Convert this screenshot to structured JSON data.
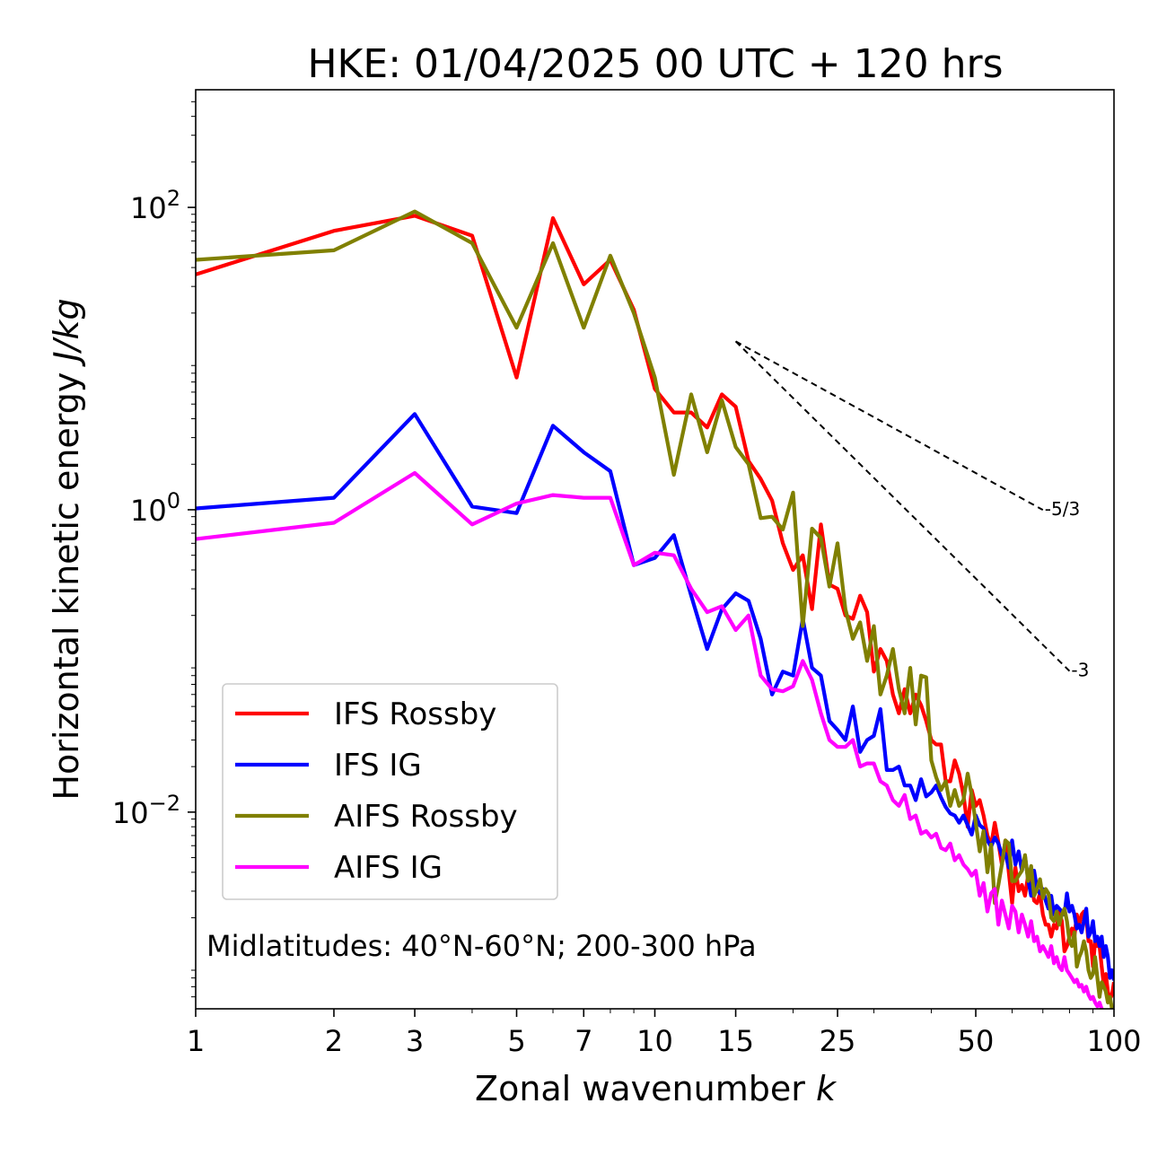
{
  "chart_data": {
    "type": "line",
    "title": "HKE: 01/04/2025 00 UTC + 120 hrs",
    "xlabel_text": "Zonal wavenumber",
    "xlabel_var": "k",
    "ylabel_text": "Horizontal kinetic energy",
    "ylabel_unit": "J/kg",
    "x_scale": "log",
    "y_scale": "log",
    "xlim": [
      1,
      100
    ],
    "ylim": [
      0.0005,
      600
    ],
    "x_ticks": [
      1,
      2,
      3,
      5,
      7,
      10,
      15,
      25,
      50,
      100
    ],
    "x_tick_labels": [
      "1",
      "2",
      "3",
      "5",
      "7",
      "10",
      "15",
      "25",
      "50",
      "100"
    ],
    "y_ticks": [
      {
        "value": 100,
        "base": "10",
        "exp": "2"
      },
      {
        "value": 1,
        "base": "10",
        "exp": "0"
      },
      {
        "value": 0.01,
        "base": "10",
        "exp": "−2"
      }
    ],
    "grid": false,
    "legend_position": "lower-left",
    "annotation": "Midlatitudes: 40°N-60°N; 200-300 hPa",
    "reference_slopes": [
      {
        "label": "-5/3",
        "exponent": -1.6667,
        "x_start": 15,
        "x_end": 70,
        "y_start": 13
      },
      {
        "label": "-3",
        "exponent": -3,
        "x_start": 15,
        "x_end": 80,
        "y_start": 13
      }
    ],
    "series": [
      {
        "name": "IFS Rossby",
        "color": "#ff0000",
        "x": [
          1,
          2,
          3,
          4,
          5,
          6,
          7,
          8,
          9,
          10,
          11,
          12,
          13,
          14,
          15,
          16,
          17,
          18,
          19,
          20,
          21,
          22,
          23,
          24,
          25,
          26,
          27,
          28,
          29,
          30,
          31,
          32,
          33,
          34,
          35,
          36,
          37,
          38,
          39,
          40,
          41,
          42,
          43,
          44,
          45,
          46,
          47,
          48,
          49,
          50,
          51,
          52,
          53,
          54,
          55,
          56,
          57,
          58,
          59,
          60,
          61,
          62,
          63,
          64,
          65,
          66,
          67,
          68,
          69,
          70,
          71,
          72,
          73,
          74,
          75,
          76,
          77,
          78,
          79,
          80,
          81,
          82,
          83,
          84,
          85,
          86,
          87,
          88,
          89,
          90,
          91,
          92,
          93,
          94,
          95,
          96,
          97,
          98,
          99,
          100
        ],
        "y": [
          36,
          70,
          88,
          65,
          7.5,
          85,
          31,
          45,
          21,
          6.3,
          4.4,
          4.4,
          3.5,
          5.8,
          4.8,
          2.1,
          1.6,
          1.15,
          0.6,
          0.4,
          0.5,
          0.22,
          0.8,
          0.32,
          0.3,
          0.2,
          0.19,
          0.27,
          0.21,
          0.085,
          0.12,
          0.1,
          0.06,
          0.045,
          0.065,
          0.045,
          0.06,
          0.051,
          0.04,
          0.03,
          0.028,
          0.028,
          0.016,
          0.016,
          0.022,
          0.018,
          0.013,
          0.008,
          0.014,
          0.011,
          0.012,
          0.0095,
          0.007,
          0.006,
          0.0085,
          0.0063,
          0.0045,
          0.0065,
          0.004,
          0.0025,
          0.0043,
          0.003,
          0.0033,
          0.0028,
          0.0038,
          0.0035,
          0.0026,
          0.0025,
          0.0029,
          0.0021,
          0.0018,
          0.0018,
          0.0015,
          0.0018,
          0.0017,
          0.0022,
          0.0019,
          0.0012,
          0.0013,
          0.0015,
          0.0017,
          0.0015,
          0.0021,
          0.0018,
          0.0021,
          0.0022,
          0.002,
          0.0014,
          0.0014,
          0.00095,
          0.0014,
          0.0013,
          0.0013,
          0.00095,
          0.00072,
          0.00085,
          0.00065,
          0.00058,
          0.00062,
          0.00075
        ]
      },
      {
        "name": "IFS IG",
        "color": "#0000ff",
        "x": [
          1,
          2,
          3,
          4,
          5,
          6,
          7,
          8,
          9,
          10,
          11,
          12,
          13,
          14,
          15,
          16,
          17,
          18,
          19,
          20,
          21,
          22,
          23,
          24,
          25,
          26,
          27,
          28,
          29,
          30,
          31,
          32,
          33,
          34,
          35,
          36,
          37,
          38,
          39,
          40,
          41,
          42,
          43,
          44,
          45,
          46,
          47,
          48,
          49,
          50,
          51,
          52,
          53,
          54,
          55,
          56,
          57,
          58,
          59,
          60,
          61,
          62,
          63,
          64,
          65,
          66,
          67,
          68,
          69,
          70,
          71,
          72,
          73,
          74,
          75,
          76,
          77,
          78,
          79,
          80,
          81,
          82,
          83,
          84,
          85,
          86,
          87,
          88,
          89,
          90,
          91,
          92,
          93,
          94,
          95,
          96,
          97,
          98,
          99,
          100
        ],
        "y": [
          1.02,
          1.2,
          4.3,
          1.05,
          0.95,
          3.6,
          2.4,
          1.8,
          0.43,
          0.48,
          0.68,
          0.27,
          0.12,
          0.22,
          0.28,
          0.25,
          0.14,
          0.06,
          0.085,
          0.08,
          0.19,
          0.09,
          0.08,
          0.04,
          0.035,
          0.03,
          0.05,
          0.025,
          0.03,
          0.032,
          0.048,
          0.019,
          0.019,
          0.02,
          0.015,
          0.015,
          0.012,
          0.0165,
          0.0127,
          0.0135,
          0.015,
          0.0125,
          0.0108,
          0.0098,
          0.0095,
          0.0085,
          0.0095,
          0.0082,
          0.0071,
          0.0095,
          0.0082,
          0.0078,
          0.0065,
          0.0059,
          0.0068,
          0.0062,
          0.0052,
          0.0053,
          0.0043,
          0.0065,
          0.0045,
          0.0055,
          0.0041,
          0.0051,
          0.0036,
          0.0028,
          0.0041,
          0.0031,
          0.0029,
          0.0031,
          0.0026,
          0.0023,
          0.0028,
          0.0021,
          0.0024,
          0.0023,
          0.0022,
          0.0021,
          0.0029,
          0.0022,
          0.0024,
          0.0021,
          0.0017,
          0.0018,
          0.0016,
          0.0019,
          0.0023,
          0.0015,
          0.0016,
          0.0019,
          0.0014,
          0.0015,
          0.0013,
          0.0015,
          0.0011,
          0.0013,
          0.0011,
          0.0008,
          0.0009,
          0.00077
        ]
      },
      {
        "name": "AIFS Rossby",
        "color": "#808000",
        "x": [
          1,
          2,
          3,
          4,
          5,
          6,
          7,
          8,
          9,
          10,
          11,
          12,
          13,
          14,
          15,
          16,
          17,
          18,
          19,
          20,
          21,
          22,
          23,
          24,
          25,
          26,
          27,
          28,
          29,
          30,
          31,
          32,
          33,
          34,
          35,
          36,
          37,
          38,
          39,
          40,
          41,
          42,
          43,
          44,
          45,
          46,
          47,
          48,
          49,
          50,
          51,
          52,
          53,
          54,
          55,
          56,
          57,
          58,
          59,
          60,
          61,
          62,
          63,
          64,
          65,
          66,
          67,
          68,
          69,
          70,
          71,
          72,
          73,
          74,
          75,
          76,
          77,
          78,
          79,
          80,
          81,
          82,
          83,
          84,
          85,
          86,
          87,
          88,
          89,
          90,
          91,
          92,
          93,
          94,
          95,
          96,
          97,
          98,
          99,
          100
        ],
        "y": [
          45,
          52,
          94,
          58,
          16,
          58,
          16,
          48,
          20,
          7.5,
          1.7,
          5.8,
          2.4,
          5.3,
          2.6,
          2,
          0.88,
          0.9,
          0.74,
          1.3,
          0.17,
          0.75,
          0.65,
          0.31,
          0.6,
          0.22,
          0.14,
          0.18,
          0.1,
          0.17,
          0.06,
          0.08,
          0.12,
          0.065,
          0.045,
          0.09,
          0.038,
          0.08,
          0.078,
          0.022,
          0.017,
          0.014,
          0.016,
          0.011,
          0.014,
          0.011,
          0.012,
          0.018,
          0.013,
          0.0085,
          0.0055,
          0.0075,
          0.004,
          0.0061,
          0.0025,
          0.0033,
          0.0045,
          0.0065,
          0.0062,
          0.0035,
          0.0035,
          0.0038,
          0.0041,
          0.0052,
          0.0035,
          0.0044,
          0.0028,
          0.0031,
          0.0036,
          0.0027,
          0.0031,
          0.0029,
          0.002,
          0.0019,
          0.0022,
          0.0018,
          0.0021,
          0.0023,
          0.0019,
          0.0014,
          0.0013,
          0.0016,
          0.00095,
          0.0011,
          0.0012,
          0.0014,
          0.0012,
          0.0009,
          0.0008,
          0.00085,
          0.0011,
          0.0008,
          0.0006,
          0.00075,
          0.0007,
          0.00065,
          0.00055,
          0.0006,
          0.0005,
          0.00052
        ]
      },
      {
        "name": "AIFS IG",
        "color": "#ff00ff",
        "x": [
          1,
          2,
          3,
          4,
          5,
          6,
          7,
          8,
          9,
          10,
          11,
          12,
          13,
          14,
          15,
          16,
          17,
          18,
          19,
          20,
          21,
          22,
          23,
          24,
          25,
          26,
          27,
          28,
          29,
          30,
          31,
          32,
          33,
          34,
          35,
          36,
          37,
          38,
          39,
          40,
          41,
          42,
          43,
          44,
          45,
          46,
          47,
          48,
          49,
          50,
          51,
          52,
          53,
          54,
          55,
          56,
          57,
          58,
          59,
          60,
          61,
          62,
          63,
          64,
          65,
          66,
          67,
          68,
          69,
          70,
          71,
          72,
          73,
          74,
          75,
          76,
          77,
          78,
          79,
          80,
          81,
          82,
          83,
          84,
          85,
          86,
          87,
          88,
          89,
          90,
          91,
          92,
          93,
          94,
          95,
          96,
          97,
          98,
          99,
          100
        ],
        "y": [
          0.64,
          0.82,
          1.75,
          0.8,
          1.1,
          1.25,
          1.2,
          1.2,
          0.43,
          0.52,
          0.5,
          0.3,
          0.21,
          0.23,
          0.16,
          0.2,
          0.08,
          0.065,
          0.063,
          0.068,
          0.1,
          0.075,
          0.045,
          0.03,
          0.027,
          0.027,
          0.03,
          0.02,
          0.021,
          0.021,
          0.016,
          0.015,
          0.012,
          0.011,
          0.013,
          0.009,
          0.0095,
          0.0072,
          0.0075,
          0.0068,
          0.0072,
          0.0058,
          0.0056,
          0.0062,
          0.0048,
          0.0052,
          0.0045,
          0.0042,
          0.0038,
          0.0041,
          0.0028,
          0.0034,
          0.0022,
          0.0029,
          0.0031,
          0.0018,
          0.0026,
          0.0021,
          0.0017,
          0.0024,
          0.0022,
          0.0016,
          0.0021,
          0.0018,
          0.0015,
          0.0019,
          0.0014,
          0.0015,
          0.0012,
          0.0013,
          0.0012,
          0.0011,
          0.0013,
          0.001,
          0.0011,
          0.00095,
          0.0009,
          0.0011,
          0.0009,
          0.00085,
          0.0008,
          0.00075,
          0.00078,
          0.0007,
          0.00072,
          0.00065,
          0.0007,
          0.00062,
          0.00058,
          0.0006,
          0.00055,
          0.00052,
          0.00055,
          0.0005,
          0.00048,
          0.00045,
          0.00046,
          0.00042,
          0.00043,
          0.0004
        ]
      }
    ]
  }
}
